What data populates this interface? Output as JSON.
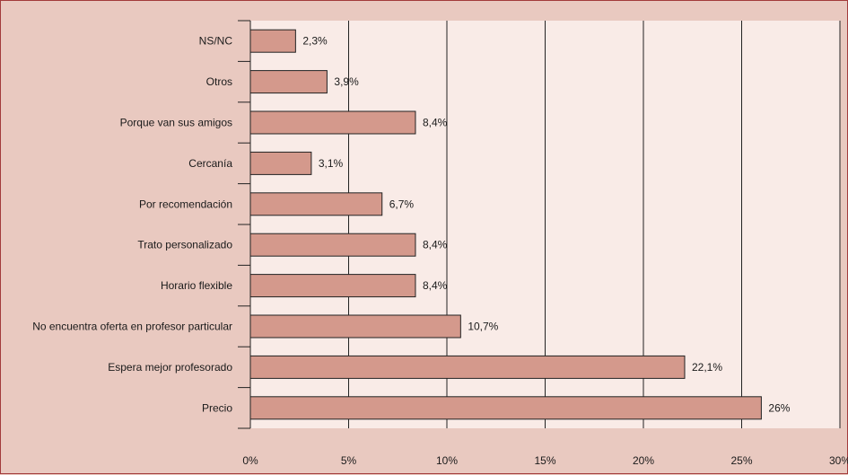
{
  "chart_data": {
    "type": "bar",
    "orientation": "horizontal",
    "categories": [
      "NS/NC",
      "Otros",
      "Porque van sus amigos",
      "Cercanía",
      "Por recomendación",
      "Trato personalizado",
      "Horario flexible",
      "No encuentra oferta en profesor particular",
      "Espera mejor profesorado",
      "Precio"
    ],
    "values": [
      2.3,
      3.9,
      8.4,
      3.1,
      6.7,
      8.4,
      8.4,
      10.7,
      22.1,
      26
    ],
    "data_labels": [
      "2,3%",
      "3,9%",
      "8,4%",
      "3,1%",
      "6,7%",
      "8,4%",
      "8,4%",
      "10,7%",
      "22,1%",
      "26%"
    ],
    "xlim": [
      0,
      30
    ],
    "x_ticks": [
      0,
      5,
      10,
      15,
      20,
      25,
      30
    ],
    "x_tick_labels": [
      "0%",
      "5%",
      "10%",
      "15%",
      "20%",
      "25%",
      "30%"
    ],
    "grid": "vertical",
    "legend": "none",
    "colors": {
      "bar_fill": "#d4998c",
      "bar_stroke": "#222222",
      "plot_background": "#f9ebe7",
      "outer_background": "#e9c9c0",
      "frame_border": "#a23b3b",
      "gridline": "#222222"
    }
  }
}
